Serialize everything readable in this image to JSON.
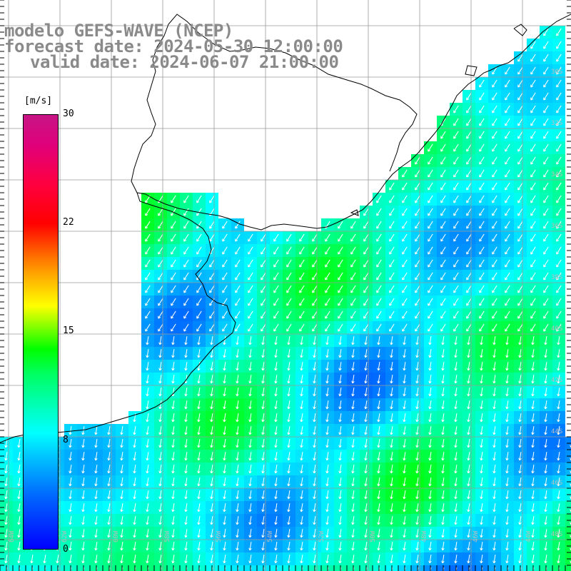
{
  "title": {
    "line1": "modelo GEFS-WAVE (NCEP)",
    "line2": "forecast date: 2024-05-30 12:00:00",
    "line3": "valid date: 2024-06-07 21:00:00"
  },
  "colorbar": {
    "unit": "[m/s]",
    "ticks": [
      "30",
      "22",
      "15",
      "8",
      "0"
    ],
    "min": 0,
    "max": 30
  },
  "map": {
    "lon_labels": [
      "64W",
      "62W",
      "60W",
      "58W",
      "56W",
      "54W",
      "52W",
      "50W",
      "48W",
      "46W",
      "44W"
    ],
    "lat_labels": [
      "30S",
      "32S",
      "34S",
      "36S",
      "38S",
      "40S",
      "42S",
      "44S",
      "46S",
      "48S"
    ],
    "field": "wind speed",
    "wind_direction": "from northeast toward southwest / south",
    "speed_range_m_s": [
      4,
      14
    ],
    "colors": {
      "land": "#ffffff",
      "coast": "#000000",
      "grid": "#9a9a9a",
      "title": "#8a8a8a",
      "arrow": "#ffffff"
    }
  }
}
